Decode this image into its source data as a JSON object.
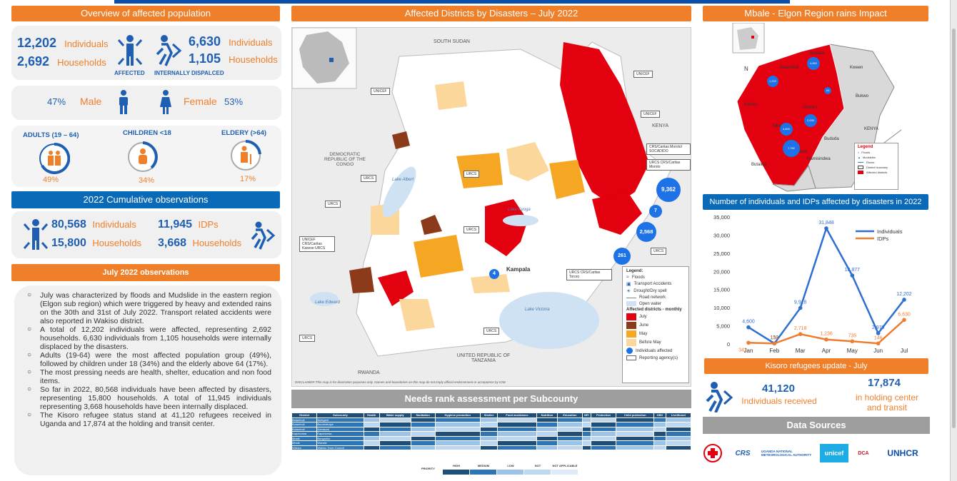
{
  "overview": {
    "title": "Overview of affected population",
    "affected_individuals": "12,202",
    "affected_households": "2,692",
    "individuals_label": "Individuals",
    "households_label": "Households",
    "affected_label": "AFFECTED",
    "idp_individuals": "6,630",
    "idp_households": "1,105",
    "idp_label": "INTERNALLY DISPALCED",
    "male_pct": "47%",
    "male_label": "Male",
    "female_label": "Female",
    "female_pct": "53%",
    "adults_label": "ADULTS (19 – 64)",
    "children_label": "CHILDREN <18",
    "elderly_label": "ELDERY (>64)",
    "adults_pct": "49%",
    "children_pct": "34%",
    "elderly_pct": "17%"
  },
  "cumulative": {
    "title": "2022 Cumulative observations",
    "individuals": "80,568",
    "individuals_label": "Individuals",
    "households": "15,800",
    "households_label": "Households",
    "idps": "11,945",
    "idps_label": "IDPs",
    "idp_households": "3,668",
    "idp_households_label": "Households"
  },
  "july": {
    "title": "July 2022 observations",
    "items": [
      "July was characterized by floods and Mudslide in the eastern region (Elgon sub region) which were triggered by heavy and extended rains on the 30th and 31st of July 2022. Transport related accidents were also reported in Wakiso district.",
      "A total of 12,202 individuals were affected, representing 2,692 households. 6,630 individuals from 1,105 households were internally displaced by the disasters.",
      "Adults (19-64) were the most affected population group (49%), followed by children under 18 (34%) and the elderly above 64 (17%).",
      "The most pressing needs are health, shelter, education and non food items.",
      "So far in 2022, 80,568 individuals have been affected by disasters, representing 15,800 households. A total of 11,945 individuals representing 3,668 households have been internally displaced.",
      "The Kisoro refugee status stand at 41,120 refugees received in Uganda and 17,874 at the holding and transit center."
    ]
  },
  "map": {
    "title": "Affected Districts by Disasters –  July 2022",
    "labels": {
      "south_sudan": "SOUTH SUDAN",
      "drc": "DEMOCRATIC REPUBLIC OF THE CONGO",
      "kenya": "KENYA",
      "tanzania": "UNITED REPUBLIC OF TANZANIA",
      "rwanda": "RWANDA",
      "lake_victoria": "Lake Victoria",
      "lake_albert": "Lake Albert",
      "lake_kyoga": "Lake Kyoga",
      "lake_edward": "Lake Edward",
      "kampala": "Kampala"
    },
    "agencies": [
      "UNICEF",
      "UNICEF",
      "UNICEF",
      "URCS",
      "URCS",
      "URCS",
      "URCS",
      "URCS",
      "URCS",
      "URCS"
    ],
    "agency_block_1": "UNICEF CRS/Caritas Kasese URCS",
    "agency_block_2": "CRS/Caritas Moroto/ SOCADIDO",
    "agency_block_3": "URCS CRS/Caritas Moroto",
    "agency_block_4": "URCS CRS/Caritas Tororo",
    "bubbles": [
      "9,362",
      "7",
      "2,568",
      "261",
      "4"
    ],
    "legend": {
      "title": "Legend:",
      "items": [
        "Floods",
        "Transport Accidents",
        "Drought/Dry spell",
        "Road network",
        "Open water"
      ],
      "monthly_title": "Affected districts - monthly",
      "months": [
        "July",
        "June",
        "May",
        "Before May"
      ],
      "individuals": "Individuals affected",
      "agency": "Reporting agency(s)",
      "colors": [
        "#e3000f",
        "#8b3a1a",
        "#f5a623",
        "#fbd79b"
      ]
    },
    "disclaimer": "DISCLAIMER:This map is for illustration purposes only. Names and boundaries on this map do not imply official endorsement or acceptance by IOM."
  },
  "needs": {
    "title": "Needs rank assessment per Subcounty",
    "headers": [
      "District",
      "Subcounty",
      "Health",
      "Water supply",
      "Sanitation",
      "Hygiene promotion",
      "Shelter",
      "Food assistance",
      "Nutrition",
      "Education",
      "NFI",
      "Protection",
      "Child protection",
      "GBV",
      "Livelihood"
    ],
    "rows": [
      [
        "Bulambuli",
        "Bulegeni"
      ],
      [
        "Bulambuli",
        "Bunambutye"
      ],
      [
        "Bulambuli",
        "Namisuni"
      ],
      [
        "Kapchorwa",
        "Kapchorwa"
      ],
      [
        "Mbale",
        "Bungokho"
      ],
      [
        "Mbale",
        "Wanale"
      ],
      [
        "Wakiso",
        "Wakiso Town Council"
      ]
    ],
    "priority_label": "PRIORITY",
    "priority_levels": [
      "HIGH",
      "MEDIUM",
      "LOW",
      "NOT",
      "NOT APPLICABLE"
    ]
  },
  "elgon": {
    "title": "Mbale - Elgon Region rains Impact",
    "labels": [
      "Kween",
      "Bulambuli",
      "Bukwo",
      "Budaka",
      "Kibuku",
      "Butaleja",
      "Namisindwa",
      "Manafwa",
      "Bududa",
      "Sironko",
      "Mbale",
      "KENYA"
    ],
    "bubbles": [
      "4,652",
      "1,202",
      "24",
      "2,000",
      "4,600",
      "7,782"
    ],
    "legend_title": "Legend",
    "legend_items": [
      "Floods",
      "Mudslides",
      "Rivers",
      "District boundary",
      "Affected districts"
    ]
  },
  "chart_data": {
    "type": "line",
    "title": "Number of individuals and IDPs affected by disasters in 2022",
    "categories": [
      "Jan",
      "Feb",
      "Mar",
      "Apr",
      "May",
      "Jun",
      "Jul"
    ],
    "series": [
      {
        "name": "Individuals",
        "values": [
          4600,
          153,
          9918,
          31848,
          18877,
          2970,
          12202
        ],
        "color": "#2e6fd1"
      },
      {
        "name": "IDPs",
        "values": [
          342,
          138,
          2718,
          1236,
          735,
          146,
          6630
        ],
        "color": "#ed7d31"
      }
    ],
    "ylim": [
      0,
      35000
    ],
    "yticks": [
      "0",
      "5,000",
      "10,000",
      "15,000",
      "20,000",
      "25,000",
      "30,000",
      "35,000"
    ],
    "legend": "right"
  },
  "kisoro": {
    "title": "Kisoro refugees update - July",
    "received": "41,120",
    "received_label": "Individuals received",
    "holding": "17,874",
    "holding_label": "in holding center and transit"
  },
  "sources": {
    "title": "Data Sources",
    "logos": [
      "CRS",
      "UGANDA NATIONAL METEOROLOGICAL AUTHORITY",
      "unicef",
      "DCA",
      "UNHCR"
    ]
  }
}
